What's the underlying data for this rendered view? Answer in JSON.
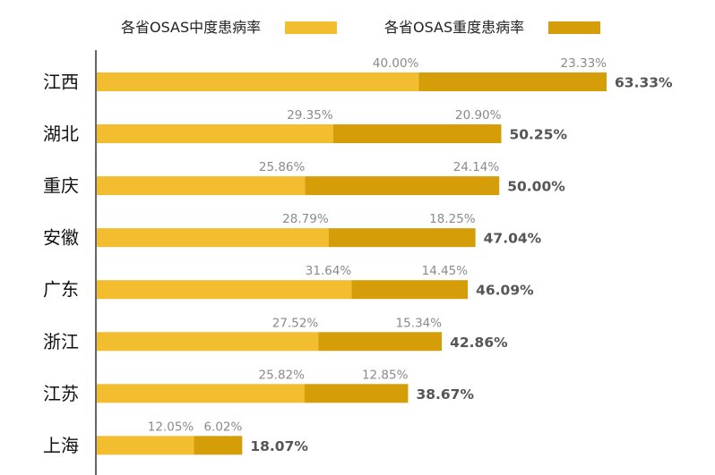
{
  "chart_data": {
    "type": "bar",
    "orientation": "horizontal",
    "stacked": true,
    "categories": [
      "江西",
      "湖北",
      "重庆",
      "安徽",
      "广东",
      "浙江",
      "江苏",
      "上海"
    ],
    "series": [
      {
        "name": "各省OSAS中度患病率",
        "color": "#f2bd2f",
        "values": [
          40.0,
          29.35,
          25.86,
          28.79,
          31.64,
          27.52,
          25.82,
          12.05
        ],
        "labels": [
          "40.00%",
          "29.35%",
          "25.86%",
          "28.79%",
          "31.64%",
          "27.52%",
          "25.82%",
          "12.05%"
        ]
      },
      {
        "name": "各省OSAS重度患病率",
        "color": "#d59d07",
        "values": [
          23.33,
          20.9,
          24.14,
          18.25,
          14.45,
          15.34,
          12.85,
          6.02
        ],
        "labels": [
          "23.33%",
          "20.90%",
          "24.14%",
          "18.25%",
          "14.45%",
          "15.34%",
          "12.85%",
          "6.02%"
        ]
      }
    ],
    "totals": [
      63.33,
      50.25,
      50.0,
      47.04,
      46.09,
      42.86,
      38.67,
      18.07
    ],
    "total_labels": [
      "63.33%",
      "50.25%",
      "50.00%",
      "47.04%",
      "46.09%",
      "42.86%",
      "38.67%",
      "18.07%"
    ],
    "xlim": [
      0,
      63.33
    ],
    "legend_position": "top",
    "grid": false
  }
}
